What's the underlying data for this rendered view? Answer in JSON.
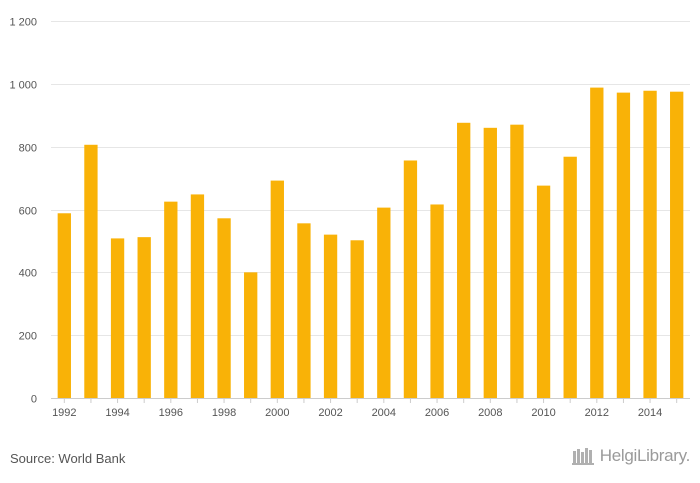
{
  "colors": {
    "bar": "#F9B207",
    "grid": "#e6e6e6",
    "axis": "#cccccc",
    "tick_text": "#555555"
  },
  "chart_data": {
    "type": "bar",
    "categories": [
      "1992",
      "1993",
      "1994",
      "1995",
      "1996",
      "1997",
      "1998",
      "1999",
      "2000",
      "2001",
      "2002",
      "2003",
      "2004",
      "2005",
      "2006",
      "2007",
      "2008",
      "2009",
      "2010",
      "2011",
      "2012",
      "2013",
      "2014",
      "2015"
    ],
    "x_tick_labels": [
      "1992",
      "1994",
      "1996",
      "1998",
      "2000",
      "2002",
      "2004",
      "2006",
      "2008",
      "2010",
      "2012",
      "2014"
    ],
    "values": [
      588,
      806,
      508,
      512,
      625,
      648,
      572,
      400,
      692,
      556,
      520,
      502,
      606,
      756,
      616,
      876,
      860,
      870,
      676,
      768,
      988,
      972,
      978,
      975
    ],
    "y_ticks": [
      0,
      200,
      400,
      600,
      800,
      1000,
      1200
    ],
    "y_tick_labels": [
      "0",
      "200",
      "400",
      "600",
      "800",
      "1 000",
      "1 200"
    ],
    "ylim": [
      0,
      1200
    ],
    "grid": true,
    "legend": false
  },
  "footer": {
    "source": "Source: World Bank",
    "logo_text": "HelgiLibrary."
  }
}
